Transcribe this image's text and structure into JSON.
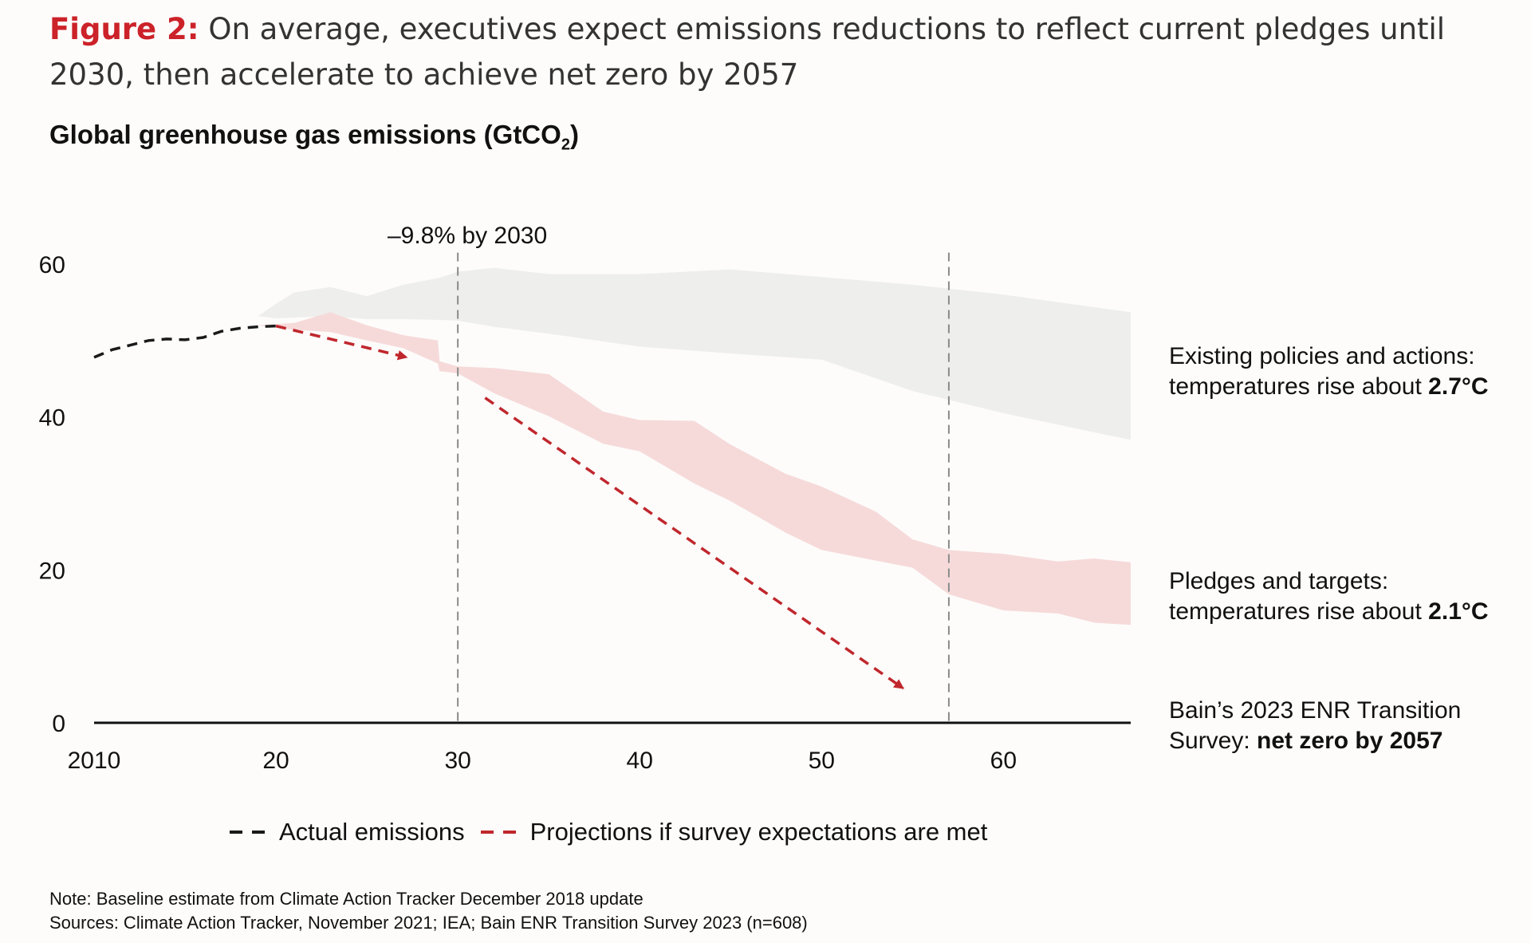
{
  "figure": {
    "label": "Figure 2:",
    "title": " On average, executives expect emissions reductions to reflect current pledges until 2030, then accelerate to achieve net zero by 2057"
  },
  "chart_title": {
    "main": "Global greenhouse gas emissions (GtCO",
    "sub": "2",
    "close": ")"
  },
  "annotations": {
    "pct_2030": "–9.8% by 2030",
    "existing_1": "Existing policies and actions:",
    "existing_2": "temperatures rise about ",
    "existing_bold": "2.7°C",
    "pledges_1": "Pledges and targets:",
    "pledges_2": "temperatures rise about ",
    "pledges_bold": "2.1°C",
    "bain_1": "Bain’s 2023 ENR Transition",
    "bain_2": "Survey: ",
    "bain_bold": "net zero by 2057"
  },
  "legend": {
    "actual": "Actual emissions",
    "projection": "Projections if survey expectations are met",
    "actual_color": "#1a1a1a",
    "projection_color": "#c0272d"
  },
  "notes": {
    "note": "Note: Baseline estimate from Climate Action Tracker December 2018 update",
    "sources": "Sources: Climate Action Tracker, November 2021; IEA; Bain ENR Transition Survey 2023 (n=608)"
  },
  "chart_data": {
    "type": "area",
    "x_tick_labels": [
      "2010",
      "20",
      "30",
      "40",
      "50",
      "60"
    ],
    "x_ticks": [
      2010,
      2020,
      2030,
      2040,
      2050,
      2060
    ],
    "y_ticks": [
      0,
      20,
      40,
      60
    ],
    "xlim": [
      2010,
      2067
    ],
    "ylim": [
      0,
      60
    ],
    "reference_lines": [
      2030,
      2057
    ],
    "colors": {
      "existing_band": "#eeeeec",
      "pledges_band": "#f6dada",
      "actual": "#1a1a1a",
      "projection": "#c0272d",
      "refline": "#8a8a8a",
      "axis": "#111111"
    },
    "actual_emissions": {
      "x": [
        2010,
        2011,
        2012,
        2013,
        2014,
        2015,
        2016,
        2017,
        2018,
        2019,
        2020
      ],
      "y": [
        47.8,
        48.8,
        49.4,
        50.0,
        50.2,
        50.1,
        50.4,
        51.2,
        51.6,
        51.8,
        51.9
      ]
    },
    "projection_segments": [
      {
        "x": [
          2020,
          2027.2
        ],
        "y": [
          51.9,
          47.8
        ]
      },
      {
        "x": [
          2031.5,
          2054.5
        ],
        "y": [
          42.5,
          4.5
        ]
      }
    ],
    "bands": [
      {
        "name": "Existing policies and actions",
        "x": [
          2019,
          2020,
          2021,
          2023,
          2025,
          2027,
          2029,
          2030,
          2032,
          2035,
          2040,
          2045,
          2050,
          2055,
          2060,
          2067
        ],
        "upper": [
          53.2,
          54.8,
          56.3,
          57.0,
          55.8,
          57.3,
          58.2,
          59.0,
          59.5,
          58.7,
          58.7,
          59.3,
          58.3,
          57.3,
          56.0,
          53.7
        ],
        "lower": [
          53.2,
          52.9,
          53.0,
          53.2,
          52.8,
          52.8,
          52.7,
          52.6,
          51.8,
          50.9,
          49.2,
          48.3,
          47.5,
          43.4,
          40.5,
          37.0
        ]
      },
      {
        "name": "Pledges and targets",
        "x": [
          2019,
          2021,
          2023,
          2025,
          2027,
          2028.9,
          2029,
          2030,
          2032,
          2035,
          2038,
          2040,
          2043,
          2045,
          2048,
          2050,
          2053,
          2055,
          2057,
          2060,
          2063,
          2065,
          2067
        ],
        "upper": [
          52.0,
          52.3,
          53.7,
          52.0,
          50.7,
          50.0,
          47.3,
          46.6,
          46.4,
          45.6,
          40.7,
          39.6,
          39.5,
          36.4,
          32.6,
          30.9,
          27.6,
          24.0,
          22.6,
          22.1,
          21.1,
          21.5,
          21.0
        ],
        "lower": [
          52.0,
          51.4,
          51.1,
          50.0,
          49.0,
          47.0,
          46.0,
          45.7,
          43.1,
          40.1,
          36.5,
          35.5,
          31.3,
          29.0,
          24.9,
          22.6,
          21.2,
          20.3,
          16.8,
          14.7,
          14.3,
          13.1,
          12.8
        ]
      }
    ]
  }
}
